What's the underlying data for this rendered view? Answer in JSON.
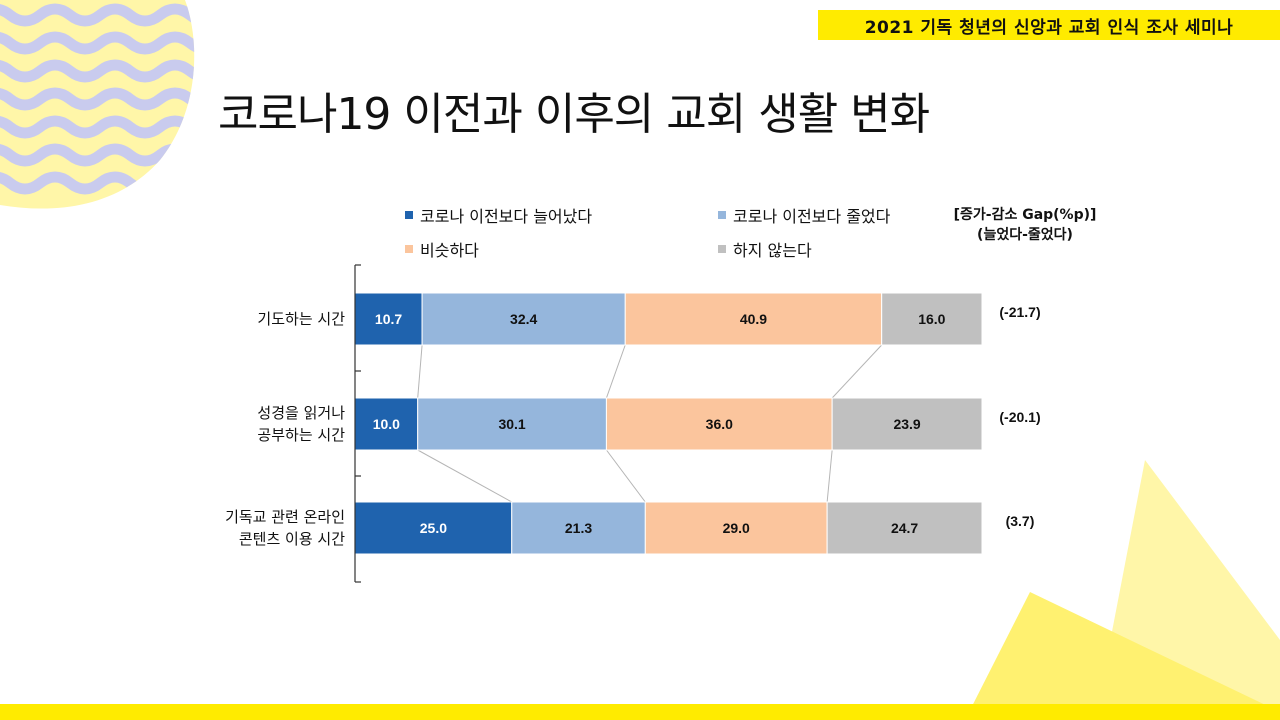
{
  "header": {
    "badge": "2021 기독 청년의 신앙과 교회 인식 조사 세미나"
  },
  "page": {
    "title": "코로나19 이전과 이후의 교회 생활 변화"
  },
  "colors": {
    "increased": "#1f63ae",
    "decreased": "#95b6dc",
    "similar": "#fbc59d",
    "none": "#c0c0c0",
    "accent_yellow": "#ffeb00",
    "deco_wave": "#c9cbee"
  },
  "gap_note": {
    "line1": "[증가-감소 Gap(%p)]",
    "line2": "(늘었다-줄었다)"
  },
  "chart_data": {
    "type": "bar",
    "orientation": "horizontal",
    "stacked": true,
    "categories": [
      "기도하는 시간",
      "성경을 읽거나 공부하는 시간",
      "기독교 관련 온라인 콘텐츠 이용 시간"
    ],
    "category_lines": [
      [
        "기도하는 시간"
      ],
      [
        "성경을 읽거나",
        "공부하는 시간"
      ],
      [
        "기독교 관련 온라인",
        "콘텐츠 이용 시간"
      ]
    ],
    "series": [
      {
        "name": "코로나 이전보다 늘어났다",
        "values": [
          10.7,
          10.0,
          25.0
        ]
      },
      {
        "name": "코로나 이전보다 줄었다",
        "values": [
          32.4,
          30.1,
          21.3
        ]
      },
      {
        "name": "비슷하다",
        "values": [
          40.9,
          36.0,
          29.0
        ]
      },
      {
        "name": "하지 않는다",
        "values": [
          16.0,
          23.9,
          24.7
        ]
      }
    ],
    "gap_values": [
      "(-21.7)",
      "(-20.1)",
      "(3.7)"
    ],
    "xlim": [
      0,
      100
    ],
    "legend_position": "top",
    "grid": false
  }
}
